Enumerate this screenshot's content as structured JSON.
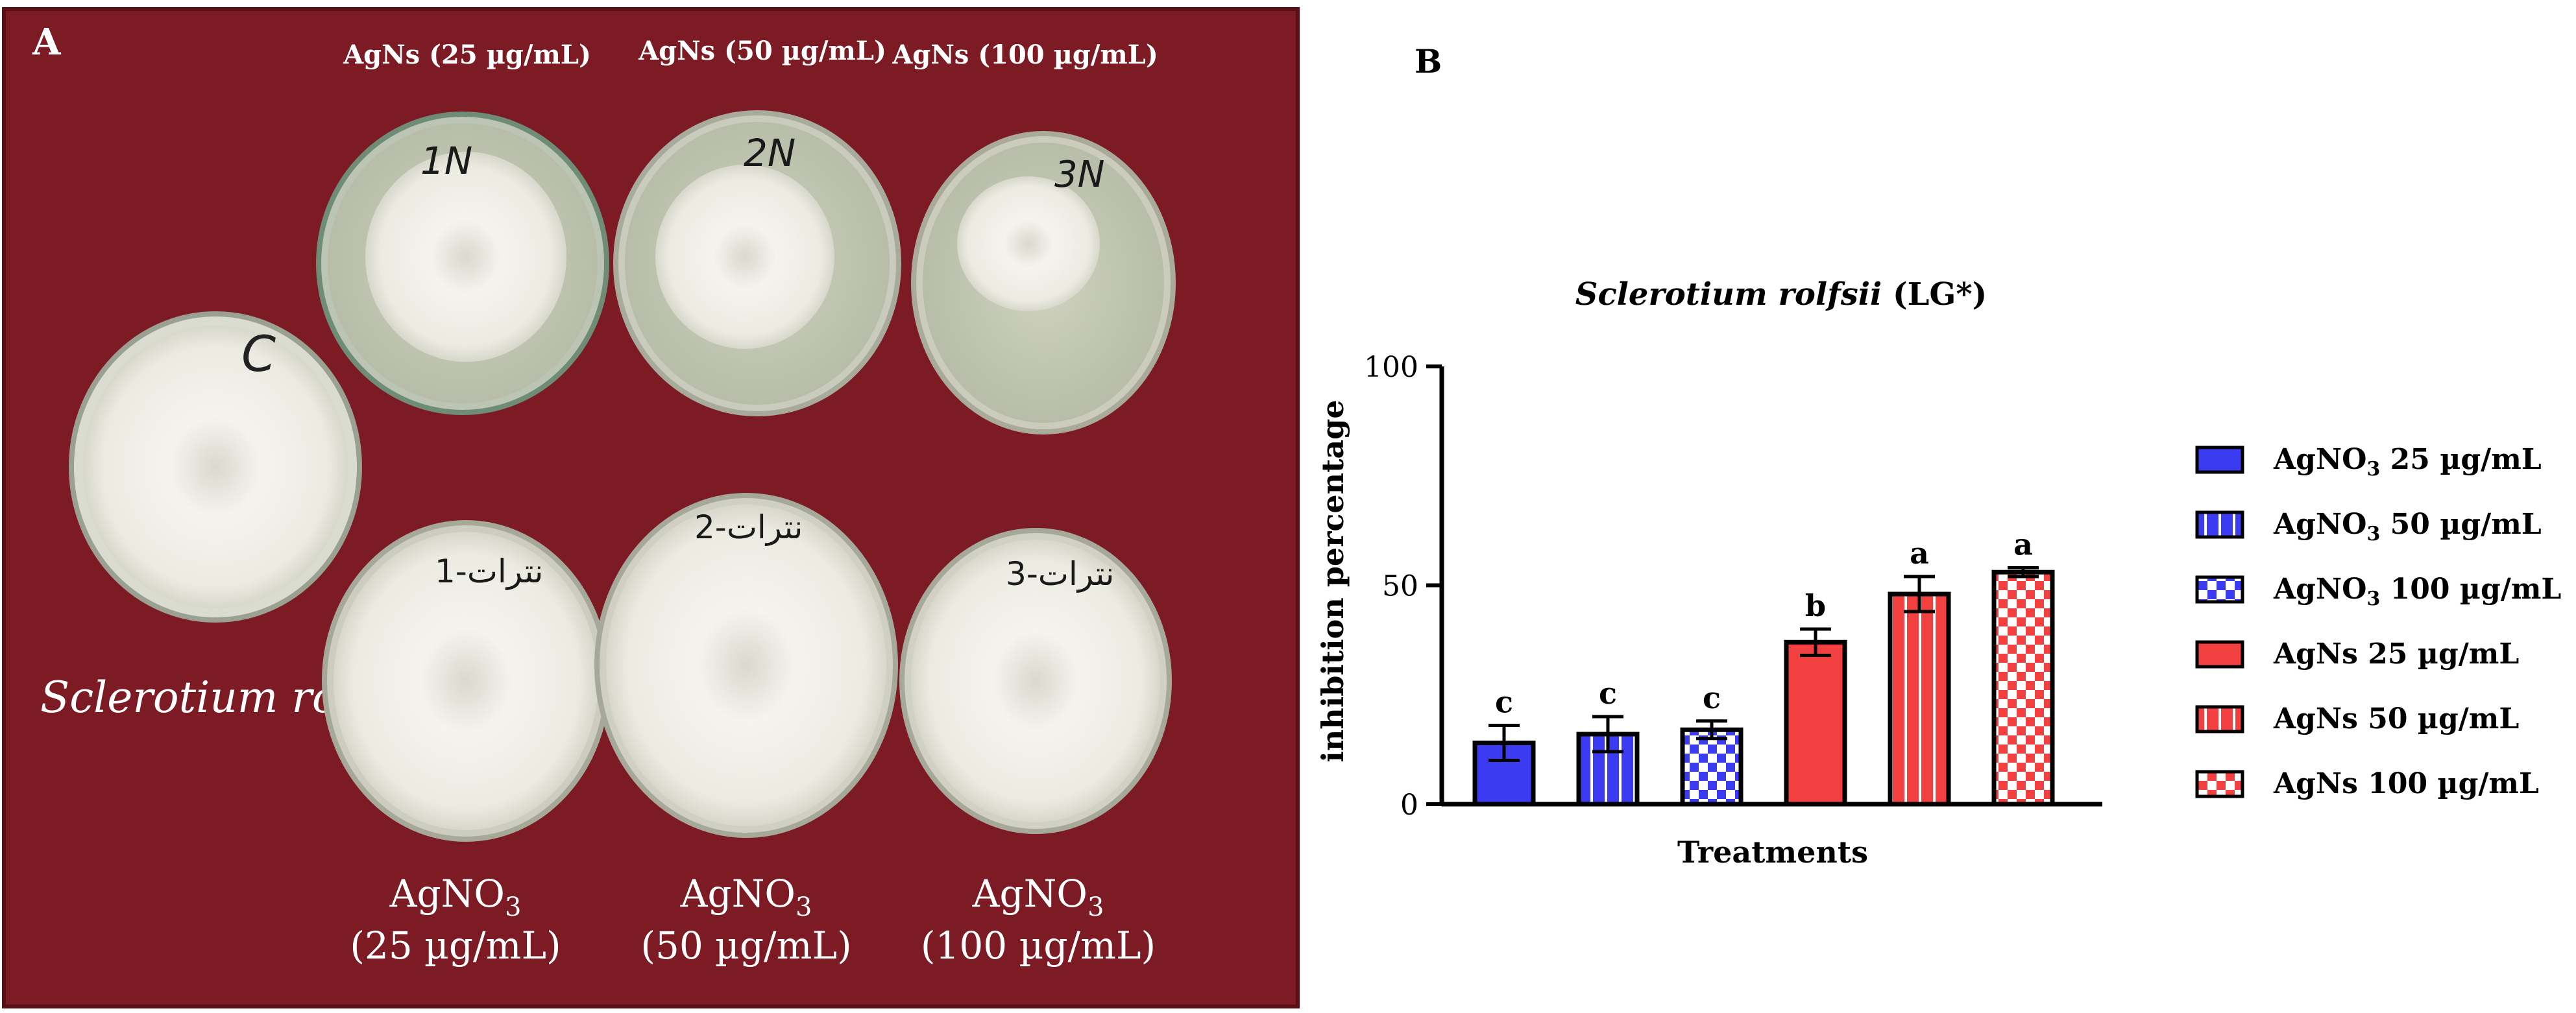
{
  "panel_a": {
    "letter": "A",
    "top_labels": [
      "AgNs (25 µg/mL)",
      "AgNs (50 µg/mL)",
      "AgNs (100 µg/mL)"
    ],
    "bottom_labels": [
      {
        "line1": "AgNO",
        "sub": "3",
        "line2": "(25 µg/mL)"
      },
      {
        "line1": "AgNO",
        "sub": "3",
        "line2": "(50 µg/mL)"
      },
      {
        "line1": "AgNO",
        "sub": "3",
        "line2": "(100 µg/mL)"
      }
    ],
    "control_mark": "C",
    "species_label": "Sclerotium rolfsii",
    "dish_marks": [
      "1N",
      "2N",
      "3N",
      "1-نترات",
      "2-نترات",
      "3-نترات"
    ],
    "colors": {
      "background": "#7a1a22",
      "agar": "#c6cbb6",
      "mycelium": "#f2f1ea"
    }
  },
  "panel_b": {
    "letter": "B",
    "legend": [
      {
        "label": "AgNO",
        "sub": "3",
        "suffix": " 25 µg/mL",
        "pattern": "solid-blue"
      },
      {
        "label": "AgNO",
        "sub": "3",
        "suffix": " 50 µg/mL",
        "pattern": "stripe-blue"
      },
      {
        "label": "AgNO",
        "sub": "3",
        "suffix": " 100 µg/mL",
        "pattern": "check-blue"
      },
      {
        "label": "AgNs 25 µg/mL",
        "sub": "",
        "suffix": "",
        "pattern": "solid-red"
      },
      {
        "label": "AgNs 50 µg/mL",
        "sub": "",
        "suffix": "",
        "pattern": "stripe-red"
      },
      {
        "label": "AgNs 100 µg/mL",
        "sub": "",
        "suffix": "",
        "pattern": "check-red"
      }
    ],
    "colors": {
      "blue": "#3b3bf2",
      "red": "#f24040",
      "axis": "#000000"
    }
  },
  "chart_data": {
    "type": "bar",
    "title": "Sclerotium rolfsii",
    "title_suffix": " (LG*)",
    "xlabel": "Treatments",
    "ylabel": "inhibition percentage",
    "ylim": [
      0,
      100
    ],
    "yticks": [
      0,
      50,
      100
    ],
    "categories": [
      "AgNO3 25 µg/mL",
      "AgNO3 50 µg/mL",
      "AgNO3 100 µg/mL",
      "AgNs 25 µg/mL",
      "AgNs 50 µg/mL",
      "AgNs 100 µg/mL"
    ],
    "values": [
      14,
      16,
      17,
      37,
      48,
      53
    ],
    "errors": [
      4,
      4,
      2,
      3,
      4,
      1
    ],
    "significance_letters": [
      "c",
      "c",
      "c",
      "b",
      "a",
      "a"
    ]
  }
}
